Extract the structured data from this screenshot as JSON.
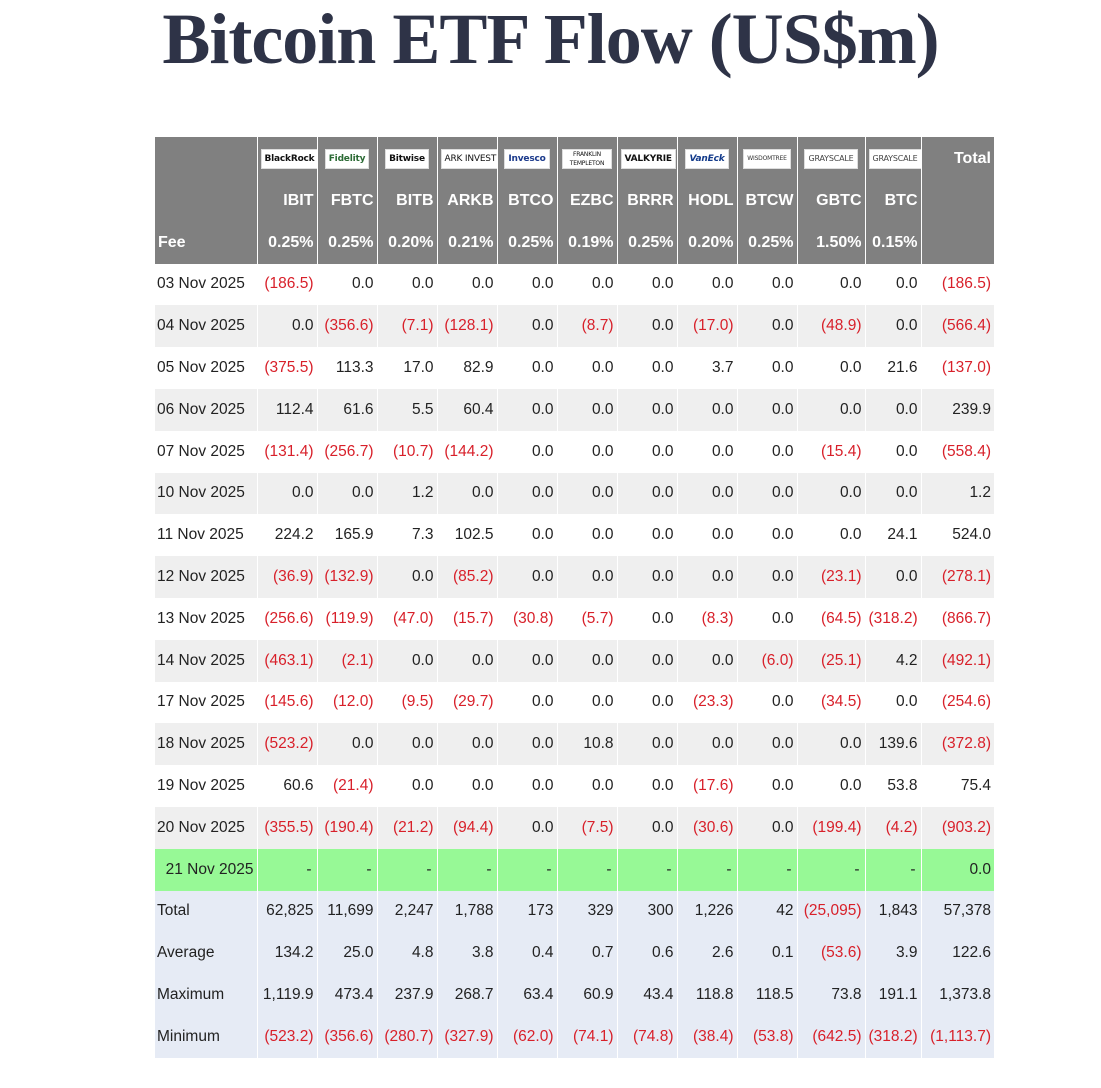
{
  "title": "Bitcoin ETF Flow (US$m)",
  "header": {
    "logos": [
      "BlackRock",
      "Fidelity",
      "Bitwise",
      "ARK INVEST",
      "Invesco",
      "FRANKLIN TEMPLETON",
      "VALKYRIE",
      "VanEck",
      "WISDOMTREE",
      "GRAYSCALE",
      "GRAYSCALE"
    ],
    "total_label": "Total",
    "tickers": [
      "IBIT",
      "FBTC",
      "BITB",
      "ARKB",
      "BTCO",
      "EZBC",
      "BRRR",
      "HODL",
      "BTCW",
      "GBTC",
      "BTC"
    ],
    "fee_label": "Fee",
    "fees": [
      "0.25%",
      "0.25%",
      "0.20%",
      "0.21%",
      "0.25%",
      "0.19%",
      "0.25%",
      "0.20%",
      "0.25%",
      "1.50%",
      "0.15%"
    ]
  },
  "rows": [
    {
      "date": "03 Nov 2025",
      "values": [
        "(186.5)",
        "0.0",
        "0.0",
        "0.0",
        "0.0",
        "0.0",
        "0.0",
        "0.0",
        "0.0",
        "0.0",
        "0.0",
        "(186.5)"
      ]
    },
    {
      "date": "04 Nov 2025",
      "values": [
        "0.0",
        "(356.6)",
        "(7.1)",
        "(128.1)",
        "0.0",
        "(8.7)",
        "0.0",
        "(17.0)",
        "0.0",
        "(48.9)",
        "0.0",
        "(566.4)"
      ]
    },
    {
      "date": "05 Nov 2025",
      "values": [
        "(375.5)",
        "113.3",
        "17.0",
        "82.9",
        "0.0",
        "0.0",
        "0.0",
        "3.7",
        "0.0",
        "0.0",
        "21.6",
        "(137.0)"
      ]
    },
    {
      "date": "06 Nov 2025",
      "values": [
        "112.4",
        "61.6",
        "5.5",
        "60.4",
        "0.0",
        "0.0",
        "0.0",
        "0.0",
        "0.0",
        "0.0",
        "0.0",
        "239.9"
      ]
    },
    {
      "date": "07 Nov 2025",
      "values": [
        "(131.4)",
        "(256.7)",
        "(10.7)",
        "(144.2)",
        "0.0",
        "0.0",
        "0.0",
        "0.0",
        "0.0",
        "(15.4)",
        "0.0",
        "(558.4)"
      ]
    },
    {
      "date": "10 Nov 2025",
      "values": [
        "0.0",
        "0.0",
        "1.2",
        "0.0",
        "0.0",
        "0.0",
        "0.0",
        "0.0",
        "0.0",
        "0.0",
        "0.0",
        "1.2"
      ]
    },
    {
      "date": "11 Nov 2025",
      "values": [
        "224.2",
        "165.9",
        "7.3",
        "102.5",
        "0.0",
        "0.0",
        "0.0",
        "0.0",
        "0.0",
        "0.0",
        "24.1",
        "524.0"
      ]
    },
    {
      "date": "12 Nov 2025",
      "values": [
        "(36.9)",
        "(132.9)",
        "0.0",
        "(85.2)",
        "0.0",
        "0.0",
        "0.0",
        "0.0",
        "0.0",
        "(23.1)",
        "0.0",
        "(278.1)"
      ]
    },
    {
      "date": "13 Nov 2025",
      "values": [
        "(256.6)",
        "(119.9)",
        "(47.0)",
        "(15.7)",
        "(30.8)",
        "(5.7)",
        "0.0",
        "(8.3)",
        "0.0",
        "(64.5)",
        "(318.2)",
        "(866.7)"
      ]
    },
    {
      "date": "14 Nov 2025",
      "values": [
        "(463.1)",
        "(2.1)",
        "0.0",
        "0.0",
        "0.0",
        "0.0",
        "0.0",
        "0.0",
        "(6.0)",
        "(25.1)",
        "4.2",
        "(492.1)"
      ]
    },
    {
      "date": "17 Nov 2025",
      "values": [
        "(145.6)",
        "(12.0)",
        "(9.5)",
        "(29.7)",
        "0.0",
        "0.0",
        "0.0",
        "(23.3)",
        "0.0",
        "(34.5)",
        "0.0",
        "(254.6)"
      ]
    },
    {
      "date": "18 Nov 2025",
      "values": [
        "(523.2)",
        "0.0",
        "0.0",
        "0.0",
        "0.0",
        "10.8",
        "0.0",
        "0.0",
        "0.0",
        "0.0",
        "139.6",
        "(372.8)"
      ]
    },
    {
      "date": "19 Nov 2025",
      "values": [
        "60.6",
        "(21.4)",
        "0.0",
        "0.0",
        "0.0",
        "0.0",
        "0.0",
        "(17.6)",
        "0.0",
        "0.0",
        "53.8",
        "75.4"
      ]
    },
    {
      "date": "20 Nov 2025",
      "values": [
        "(355.5)",
        "(190.4)",
        "(21.2)",
        "(94.4)",
        "0.0",
        "(7.5)",
        "0.0",
        "(30.6)",
        "0.0",
        "(199.4)",
        "(4.2)",
        "(903.2)"
      ]
    },
    {
      "date": "21 Nov 2025",
      "highlight": true,
      "values": [
        "-",
        "-",
        "-",
        "-",
        "-",
        "-",
        "-",
        "-",
        "-",
        "-",
        "-",
        "0.0"
      ]
    }
  ],
  "summary": [
    {
      "label": "Total",
      "values": [
        "62,825",
        "11,699",
        "2,247",
        "1,788",
        "173",
        "329",
        "300",
        "1,226",
        "42",
        "(25,095)",
        "1,843",
        "57,378"
      ]
    },
    {
      "label": "Average",
      "values": [
        "134.2",
        "25.0",
        "4.8",
        "3.8",
        "0.4",
        "0.7",
        "0.6",
        "2.6",
        "0.1",
        "(53.6)",
        "3.9",
        "122.6"
      ]
    },
    {
      "label": "Maximum",
      "values": [
        "1,119.9",
        "473.4",
        "237.9",
        "268.7",
        "63.4",
        "60.9",
        "43.4",
        "118.8",
        "118.5",
        "73.8",
        "191.1",
        "1,373.8"
      ]
    },
    {
      "label": "Minimum",
      "values": [
        "(523.2)",
        "(356.6)",
        "(280.7)",
        "(327.9)",
        "(62.0)",
        "(74.1)",
        "(74.8)",
        "(38.4)",
        "(53.8)",
        "(642.5)",
        "(318.2)",
        "(1,113.7)"
      ]
    }
  ],
  "colors": {
    "header_bg": "#808080",
    "row_alt": "#efefef",
    "highlight": "#97f996",
    "summary_bg": "#e6ebf5",
    "negative": "#d8202a",
    "title": "#2e3347"
  }
}
